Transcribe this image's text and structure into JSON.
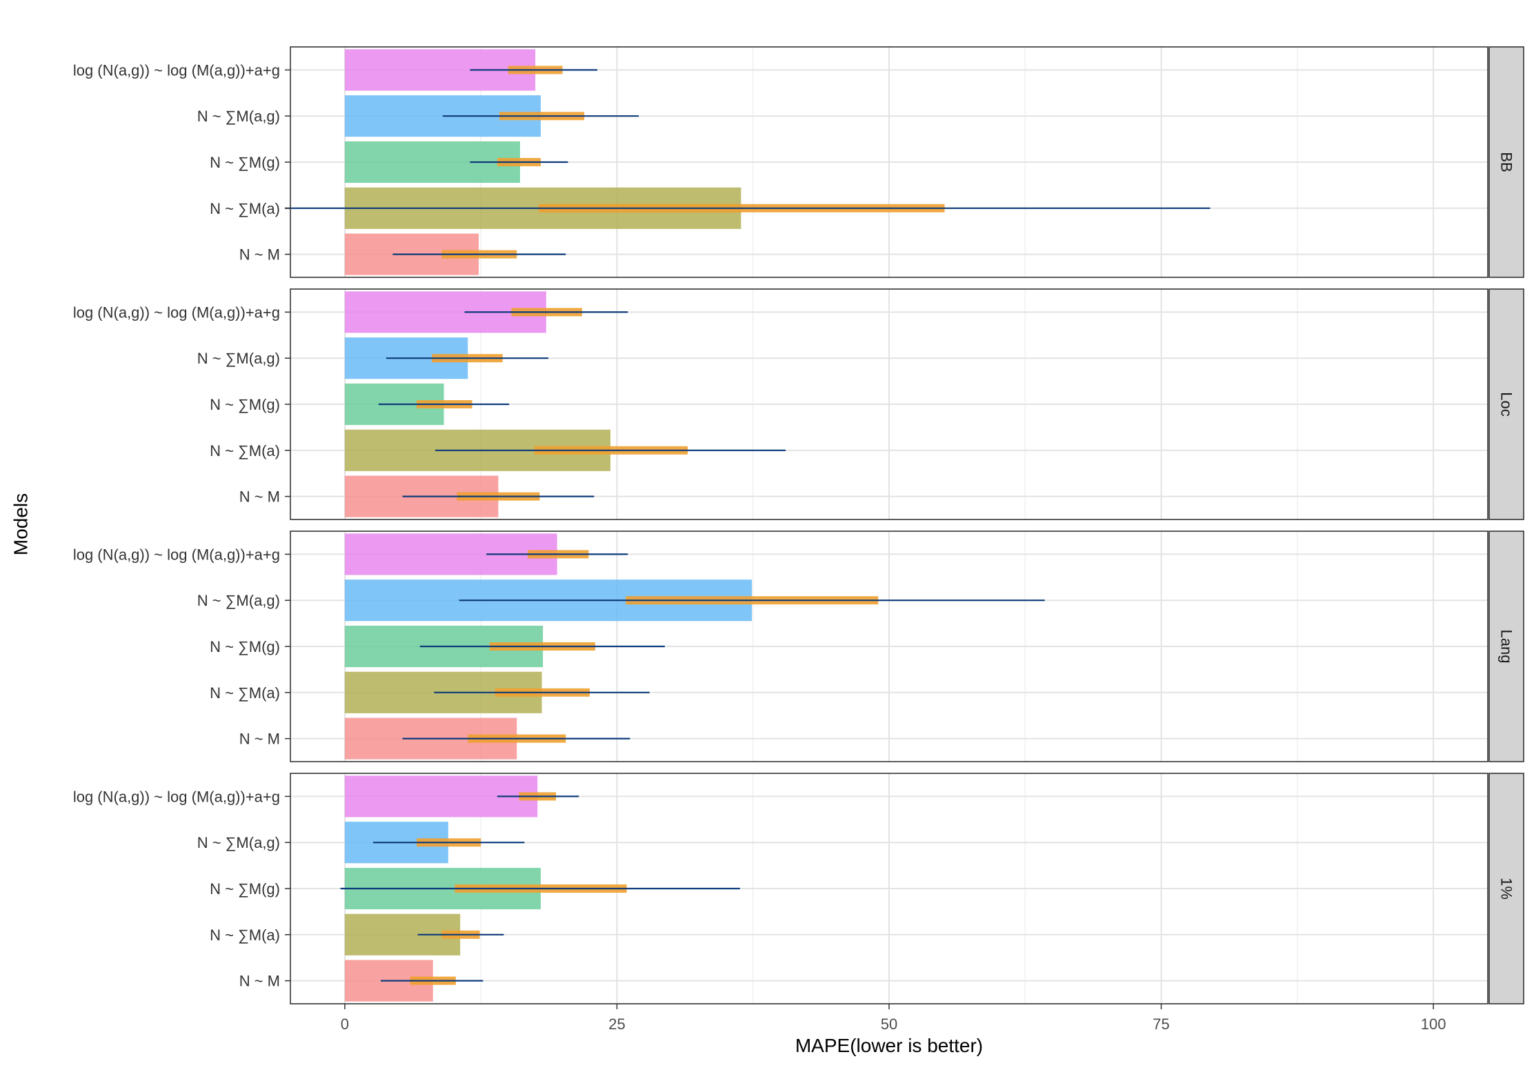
{
  "chart_data": {
    "type": "bar",
    "orientation": "horizontal",
    "xlabel": "MAPE(lower is better)",
    "ylabel": "Models",
    "xlim": [
      -5,
      105
    ],
    "xticks": [
      0,
      25,
      50,
      75,
      100
    ],
    "grid": true,
    "categories": [
      "log (N(a,g)) ~ log (M(a,g))+a+g",
      "N ~ ∑M(a,g)",
      "N ~ ∑M(g)",
      "N ~ ∑M(a)",
      "N ~ M"
    ],
    "colors": [
      "#e683ee",
      "#64b8f5",
      "#66cc99",
      "#b0ad4e",
      "#f68e8c"
    ],
    "interval_colors": {
      "inner": "#f0a030",
      "outer": "#0d3a7a"
    },
    "panels": [
      {
        "label": "BB",
        "series": [
          {
            "model": "log (N(a,g)) ~ log (M(a,g))+a+g",
            "value": 17.5,
            "inner": [
              15,
              20
            ],
            "outer": [
              11.5,
              23.2
            ]
          },
          {
            "model": "N ~ ∑M(a,g)",
            "value": 18,
            "inner": [
              14.2,
              22
            ],
            "outer": [
              9,
              27
            ]
          },
          {
            "model": "N ~ ∑M(g)",
            "value": 16.1,
            "inner": [
              14,
              18
            ],
            "outer": [
              11.5,
              20.5
            ]
          },
          {
            "model": "N ~ ∑M(a)",
            "value": 36.4,
            "inner": [
              17.8,
              55.1
            ],
            "outer": [
              -5.5,
              79.5
            ]
          },
          {
            "model": "N ~ M",
            "value": 12.3,
            "inner": [
              8.9,
              15.8
            ],
            "outer": [
              4.4,
              20.3
            ]
          }
        ]
      },
      {
        "label": "Loc",
        "series": [
          {
            "model": "log (N(a,g)) ~ log (M(a,g))+a+g",
            "value": 18.5,
            "inner": [
              15.3,
              21.8
            ],
            "outer": [
              11,
              26
            ]
          },
          {
            "model": "N ~ ∑M(a,g)",
            "value": 11.3,
            "inner": [
              8,
              14.5
            ],
            "outer": [
              3.8,
              18.7
            ]
          },
          {
            "model": "N ~ ∑M(g)",
            "value": 9.1,
            "inner": [
              6.6,
              11.7
            ],
            "outer": [
              3.1,
              15.1
            ]
          },
          {
            "model": "N ~ ∑M(a)",
            "value": 24.4,
            "inner": [
              17.4,
              31.5
            ],
            "outer": [
              8.3,
              40.5
            ]
          },
          {
            "model": "N ~ M",
            "value": 14.1,
            "inner": [
              10.3,
              17.9
            ],
            "outer": [
              5.3,
              22.9
            ]
          }
        ]
      },
      {
        "label": "Lang",
        "series": [
          {
            "model": "log (N(a,g)) ~ log (M(a,g))+a+g",
            "value": 19.5,
            "inner": [
              16.8,
              22.4
            ],
            "outer": [
              13,
              26
            ]
          },
          {
            "model": "N ~ ∑M(a,g)",
            "value": 37.4,
            "inner": [
              25.8,
              49
            ],
            "outer": [
              10.5,
              64.3
            ]
          },
          {
            "model": "N ~ ∑M(g)",
            "value": 18.2,
            "inner": [
              13.3,
              23
            ],
            "outer": [
              6.9,
              29.4
            ]
          },
          {
            "model": "N ~ ∑M(a)",
            "value": 18.1,
            "inner": [
              13.8,
              22.5
            ],
            "outer": [
              8.2,
              28
            ]
          },
          {
            "model": "N ~ M",
            "value": 15.8,
            "inner": [
              11.3,
              20.3
            ],
            "outer": [
              5.3,
              26.2
            ]
          }
        ]
      },
      {
        "label": "1%",
        "series": [
          {
            "model": "log (N(a,g)) ~ log (M(a,g))+a+g",
            "value": 17.7,
            "inner": [
              16,
              19.4
            ],
            "outer": [
              14,
              21.5
            ]
          },
          {
            "model": "N ~ ∑M(a,g)",
            "value": 9.5,
            "inner": [
              6.6,
              12.5
            ],
            "outer": [
              2.6,
              16.5
            ]
          },
          {
            "model": "N ~ ∑M(g)",
            "value": 18,
            "inner": [
              10.1,
              25.9
            ],
            "outer": [
              -0.4,
              36.3
            ]
          },
          {
            "model": "N ~ ∑M(a)",
            "value": 10.6,
            "inner": [
              8.9,
              12.4
            ],
            "outer": [
              6.7,
              14.6
            ]
          },
          {
            "model": "N ~ M",
            "value": 8.1,
            "inner": [
              6,
              10.2
            ],
            "outer": [
              3.3,
              12.7
            ]
          }
        ]
      }
    ]
  }
}
